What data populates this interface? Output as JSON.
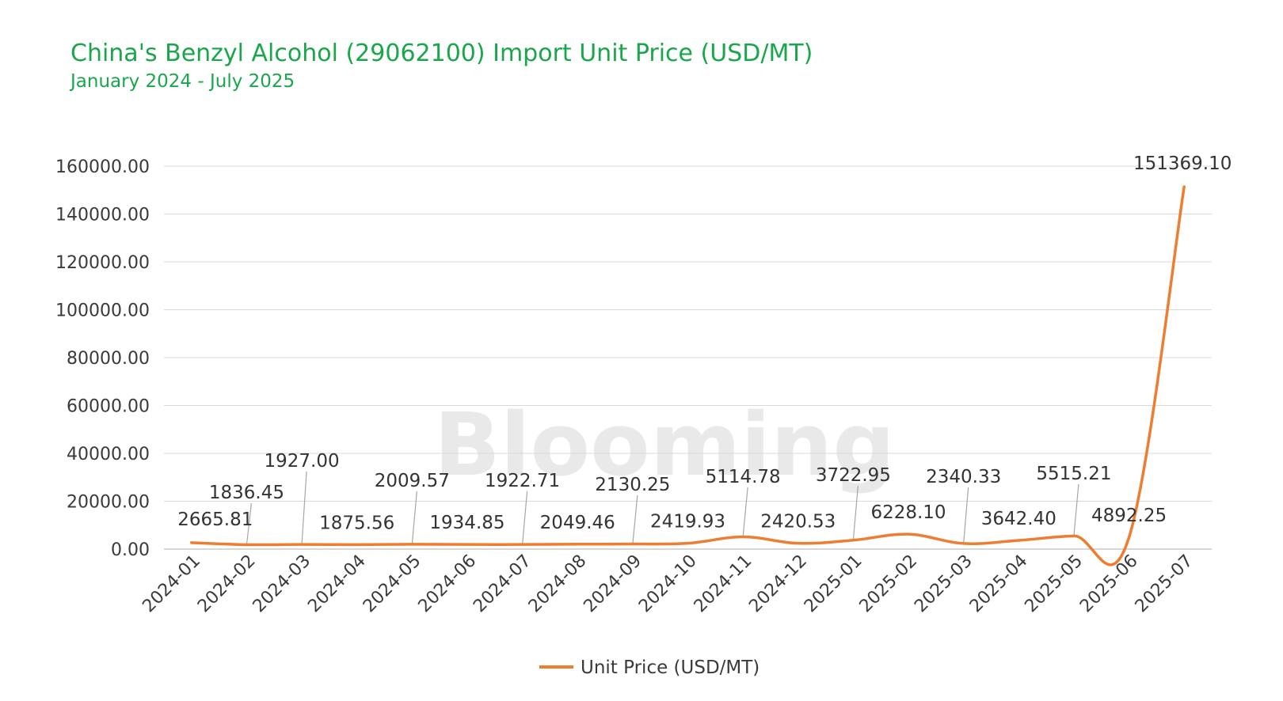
{
  "title": "China's Benzyl Alcohol (29062100) Import Unit Price (USD/MT)",
  "subtitle": "January 2024 - July 2025",
  "watermark": "Blooming",
  "colors": {
    "title": "#1aa64a",
    "line": "#ed7d31",
    "grid": "#d9d9d9"
  },
  "chart_data": {
    "type": "line",
    "categories": [
      "2024-01",
      "2024-02",
      "2024-03",
      "2024-04",
      "2024-05",
      "2024-06",
      "2024-07",
      "2024-08",
      "2024-09",
      "2024-10",
      "2024-11",
      "2024-12",
      "2025-01",
      "2025-02",
      "2025-03",
      "2025-04",
      "2025-05",
      "2025-06",
      "2025-07"
    ],
    "series": [
      {
        "name": "Unit Price (USD/MT)",
        "values": [
          2665.81,
          1836.45,
          1927.0,
          1875.56,
          2009.57,
          1934.85,
          1922.71,
          2049.46,
          2130.25,
          2419.93,
          5114.78,
          2420.53,
          3722.95,
          6228.1,
          2340.33,
          3642.4,
          5515.21,
          4892.25,
          151369.1
        ],
        "labels": [
          "2665.81",
          "1836.45",
          "1927.00",
          "1875.56",
          "2009.57",
          "1934.85",
          "1922.71",
          "2049.46",
          "2130.25",
          "2419.93",
          "5114.78",
          "2420.53",
          "3722.95",
          "6228.10",
          "2340.33",
          "3642.40",
          "5515.21",
          "4892.25",
          "151369.10"
        ]
      }
    ],
    "ylim": [
      0,
      160000
    ],
    "yticks": [
      "0.00",
      "20000.00",
      "40000.00",
      "60000.00",
      "80000.00",
      "100000.00",
      "120000.00",
      "140000.00",
      "160000.00"
    ],
    "grid": true,
    "legend": "bottom"
  }
}
